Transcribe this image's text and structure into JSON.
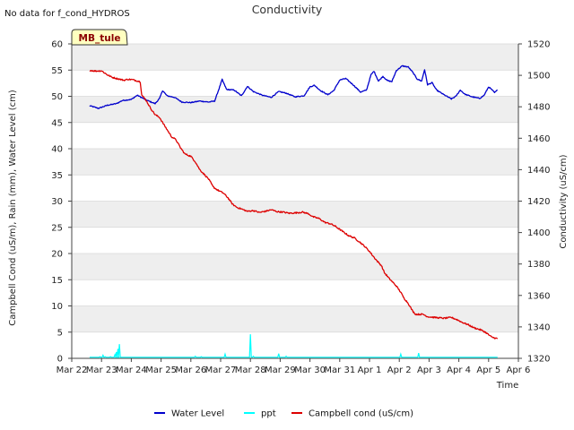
{
  "chart_data": {
    "type": "line",
    "title": "Conductivity",
    "no_data_note": "No data for f_cond_HYDROS",
    "site_badge": "MB_tule",
    "xlabel": "Time",
    "ylabel_left": "Campbell Cond (uS/m), Rain (mm), Water Level (cm)",
    "ylabel_right": "Conductivity (uS/cm)",
    "ylim_left": [
      0,
      60
    ],
    "ylim_right": [
      1320,
      1520
    ],
    "xlim_days": [
      0,
      15
    ],
    "x_ticks": [
      {
        "day": 0,
        "label": "Mar 22"
      },
      {
        "day": 1,
        "label": "Mar 23"
      },
      {
        "day": 2,
        "label": "Mar 24"
      },
      {
        "day": 3,
        "label": "Mar 25"
      },
      {
        "day": 4,
        "label": "Mar 26"
      },
      {
        "day": 5,
        "label": "Mar 27"
      },
      {
        "day": 6,
        "label": "Mar 28"
      },
      {
        "day": 7,
        "label": "Mar 29"
      },
      {
        "day": 8,
        "label": "Mar 30"
      },
      {
        "day": 9,
        "label": "Mar 31"
      },
      {
        "day": 10,
        "label": "Apr 1"
      },
      {
        "day": 11,
        "label": "Apr 2"
      },
      {
        "day": 12,
        "label": "Apr 3"
      },
      {
        "day": 13,
        "label": "Apr 4"
      },
      {
        "day": 14,
        "label": "Apr 5"
      },
      {
        "day": 15,
        "label": "Apr 6"
      }
    ],
    "y_ticks_left": [
      0,
      5,
      10,
      15,
      20,
      25,
      30,
      35,
      40,
      45,
      50,
      55,
      60
    ],
    "y_ticks_right": [
      1320,
      1340,
      1360,
      1380,
      1400,
      1420,
      1440,
      1460,
      1480,
      1500,
      1520
    ],
    "legend_position": "bottom-center",
    "series": [
      {
        "name": "Water Level",
        "axis": "left",
        "color": "#0000cc",
        "points": [
          [
            0.6,
            48.2
          ],
          [
            0.9,
            47.7
          ],
          [
            1.2,
            48.3
          ],
          [
            1.5,
            48.6
          ],
          [
            1.7,
            49.2
          ],
          [
            2.0,
            49.4
          ],
          [
            2.2,
            50.2
          ],
          [
            2.5,
            49.3
          ],
          [
            2.8,
            48.6
          ],
          [
            2.95,
            49.6
          ],
          [
            3.05,
            51.1
          ],
          [
            3.2,
            50.1
          ],
          [
            3.45,
            49.8
          ],
          [
            3.7,
            48.9
          ],
          [
            4.0,
            48.8
          ],
          [
            4.3,
            49.1
          ],
          [
            4.6,
            48.9
          ],
          [
            4.8,
            49.1
          ],
          [
            4.95,
            51.5
          ],
          [
            5.05,
            53.2
          ],
          [
            5.2,
            51.3
          ],
          [
            5.45,
            51.2
          ],
          [
            5.7,
            50.1
          ],
          [
            5.9,
            51.9
          ],
          [
            6.1,
            50.9
          ],
          [
            6.4,
            50.2
          ],
          [
            6.7,
            49.8
          ],
          [
            6.95,
            50.9
          ],
          [
            7.2,
            50.6
          ],
          [
            7.5,
            49.9
          ],
          [
            7.8,
            50.1
          ],
          [
            8.0,
            51.8
          ],
          [
            8.15,
            52.1
          ],
          [
            8.35,
            51.1
          ],
          [
            8.6,
            50.3
          ],
          [
            8.8,
            51.1
          ],
          [
            9.0,
            53.1
          ],
          [
            9.2,
            53.4
          ],
          [
            9.45,
            52.2
          ],
          [
            9.7,
            50.8
          ],
          [
            9.9,
            51.2
          ],
          [
            10.05,
            54.1
          ],
          [
            10.15,
            54.8
          ],
          [
            10.3,
            52.9
          ],
          [
            10.45,
            53.8
          ],
          [
            10.6,
            53.0
          ],
          [
            10.75,
            52.8
          ],
          [
            10.9,
            54.9
          ],
          [
            11.1,
            55.8
          ],
          [
            11.3,
            55.6
          ],
          [
            11.45,
            54.6
          ],
          [
            11.6,
            53.3
          ],
          [
            11.75,
            52.9
          ],
          [
            11.85,
            55.1
          ],
          [
            11.95,
            52.2
          ],
          [
            12.1,
            52.6
          ],
          [
            12.25,
            51.2
          ],
          [
            12.5,
            50.3
          ],
          [
            12.75,
            49.5
          ],
          [
            12.9,
            50.0
          ],
          [
            13.05,
            51.2
          ],
          [
            13.2,
            50.4
          ],
          [
            13.45,
            49.9
          ],
          [
            13.7,
            49.6
          ],
          [
            13.85,
            50.2
          ],
          [
            14.0,
            51.8
          ],
          [
            14.1,
            51.3
          ],
          [
            14.2,
            50.7
          ],
          [
            14.3,
            51.2
          ]
        ]
      },
      {
        "name": "ppt",
        "axis": "left",
        "color": "#00ffff",
        "baseline": 0.2,
        "spikes": [
          [
            0.95,
            0.3
          ],
          [
            1.05,
            0.6
          ],
          [
            1.12,
            0.3
          ],
          [
            1.3,
            0.3
          ],
          [
            1.45,
            0.7
          ],
          [
            1.5,
            1.2
          ],
          [
            1.55,
            1.8
          ],
          [
            1.6,
            2.7
          ],
          [
            4.15,
            0.4
          ],
          [
            4.35,
            0.3
          ],
          [
            5.15,
            0.8
          ],
          [
            6.0,
            4.6
          ],
          [
            6.1,
            0.4
          ],
          [
            6.95,
            0.9
          ],
          [
            7.2,
            0.4
          ],
          [
            11.05,
            0.8
          ],
          [
            11.65,
            1.0
          ]
        ]
      },
      {
        "name": "Campbell cond (uS/cm)",
        "axis": "right",
        "color": "#dd0000",
        "points": [
          [
            0.6,
            1503.2
          ],
          [
            0.8,
            1502.7
          ],
          [
            1.0,
            1502.9
          ],
          [
            1.2,
            1500.3
          ],
          [
            1.35,
            1498.8
          ],
          [
            1.55,
            1497.8
          ],
          [
            1.75,
            1496.9
          ],
          [
            1.9,
            1497.5
          ],
          [
            2.05,
            1497.2
          ],
          [
            2.3,
            1496.0
          ],
          [
            2.35,
            1487.5
          ],
          [
            2.5,
            1484.0
          ],
          [
            2.65,
            1479.0
          ],
          [
            2.8,
            1475.0
          ],
          [
            2.95,
            1473.2
          ],
          [
            3.05,
            1470.0
          ],
          [
            3.2,
            1465.5
          ],
          [
            3.35,
            1461.0
          ],
          [
            3.5,
            1459.0
          ],
          [
            3.65,
            1454.0
          ],
          [
            3.8,
            1450.0
          ],
          [
            4.0,
            1448.5
          ],
          [
            4.15,
            1445.0
          ],
          [
            4.3,
            1440.0
          ],
          [
            4.45,
            1437.0
          ],
          [
            4.6,
            1434.0
          ],
          [
            4.75,
            1429.0
          ],
          [
            4.9,
            1427.0
          ],
          [
            5.1,
            1425.0
          ],
          [
            5.25,
            1422.0
          ],
          [
            5.4,
            1418.0
          ],
          [
            5.55,
            1416.0
          ],
          [
            5.7,
            1415.0
          ],
          [
            5.9,
            1413.5
          ],
          [
            6.1,
            1414.0
          ],
          [
            6.3,
            1412.8
          ],
          [
            6.5,
            1413.5
          ],
          [
            6.7,
            1414.5
          ],
          [
            6.9,
            1413.3
          ],
          [
            7.1,
            1413.0
          ],
          [
            7.3,
            1412.3
          ],
          [
            7.5,
            1412.5
          ],
          [
            7.75,
            1413.0
          ],
          [
            7.95,
            1412.0
          ],
          [
            8.1,
            1410.0
          ],
          [
            8.3,
            1409.0
          ],
          [
            8.5,
            1406.5
          ],
          [
            8.7,
            1405.5
          ],
          [
            8.85,
            1404.0
          ],
          [
            9.0,
            1402.0
          ],
          [
            9.15,
            1400.0
          ],
          [
            9.3,
            1398.0
          ],
          [
            9.5,
            1396.5
          ],
          [
            9.7,
            1393.5
          ],
          [
            9.85,
            1391.0
          ],
          [
            10.0,
            1388.0
          ],
          [
            10.1,
            1385.5
          ],
          [
            10.25,
            1382.0
          ],
          [
            10.4,
            1379.0
          ],
          [
            10.5,
            1374.5
          ],
          [
            10.65,
            1371.0
          ],
          [
            10.8,
            1368.0
          ],
          [
            10.9,
            1366.0
          ],
          [
            11.05,
            1362.0
          ],
          [
            11.15,
            1358.5
          ],
          [
            11.3,
            1355.0
          ],
          [
            11.45,
            1350.0
          ],
          [
            11.55,
            1348.0
          ],
          [
            11.8,
            1348.0
          ],
          [
            11.95,
            1346.5
          ],
          [
            12.2,
            1346.0
          ],
          [
            12.5,
            1345.5
          ],
          [
            12.75,
            1346.0
          ],
          [
            12.95,
            1344.5
          ],
          [
            13.1,
            1343.0
          ],
          [
            13.3,
            1341.5
          ],
          [
            13.5,
            1339.5
          ],
          [
            13.75,
            1338.0
          ],
          [
            13.9,
            1336.5
          ],
          [
            14.1,
            1333.5
          ],
          [
            14.3,
            1332.5
          ]
        ]
      }
    ]
  }
}
